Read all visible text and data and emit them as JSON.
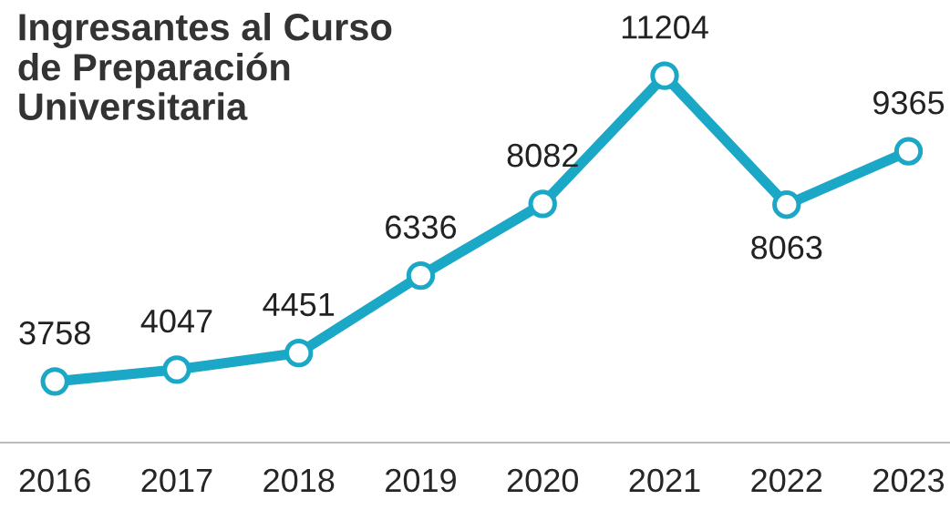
{
  "chart_data": {
    "type": "line",
    "title": "Ingresantes al Curso\nde Preparación\nUniversitaria",
    "categories": [
      "2016",
      "2017",
      "2018",
      "2019",
      "2020",
      "2021",
      "2022",
      "2023"
    ],
    "series": [
      {
        "color": "#1ba8c6",
        "values": [
          3758,
          4047,
          4451,
          6336,
          8082,
          11204,
          8063,
          9365
        ]
      }
    ],
    "data_labels": true,
    "marker": "circle",
    "grid": false,
    "legend": false
  }
}
